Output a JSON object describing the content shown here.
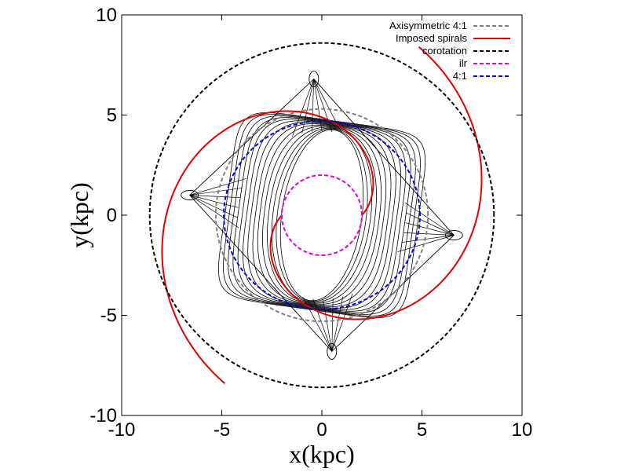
{
  "chart_data": {
    "type": "line",
    "title": "",
    "xlabel": "x(kpc)",
    "ylabel": "y(kpc)",
    "xlim": [
      -10,
      10
    ],
    "ylim": [
      -10,
      10
    ],
    "xticks": [
      -10,
      -5,
      0,
      5,
      10
    ],
    "yticks": [
      -10,
      -5,
      0,
      5,
      10
    ],
    "xtick_labels": [
      "-10",
      "-5",
      "0",
      "5",
      "10"
    ],
    "ytick_labels": [
      "-10",
      "-5",
      "0",
      "5",
      "10"
    ],
    "grid": false,
    "legend_position": "top-right",
    "series": [
      {
        "name": "Axisymmetric 4:1",
        "kind": "circle",
        "radius": 5.3,
        "center": [
          0,
          0
        ],
        "color": "#808080",
        "dash": "dashed"
      },
      {
        "name": "Imposed spirals",
        "kind": "two-arm spiral",
        "r_inner": 2.0,
        "r_outer": 9.7,
        "winding_deg": 240,
        "color": "#e00000",
        "dash": "solid"
      },
      {
        "name": "corotation",
        "kind": "circle",
        "radius": 8.6,
        "center": [
          0,
          0
        ],
        "color": "#000000",
        "dash": "dashed"
      },
      {
        "name": "ilr",
        "kind": "circle",
        "radius": 2.0,
        "center": [
          0,
          0
        ],
        "color": "#e000e0",
        "dash": "dashed"
      },
      {
        "name": "4:1",
        "kind": "oval",
        "semi_axis_x": 4.9,
        "semi_axis_y": 4.7,
        "center": [
          0,
          0
        ],
        "color": "#0000e0",
        "dash": "dashed"
      }
    ],
    "orbit_family": {
      "color": "#000000",
      "n_orbits": 14,
      "semi_axis_x_range": [
        2.0,
        4.8
      ],
      "semi_axis_y_range": [
        4.3,
        4.75
      ],
      "squareness_max": 0.85,
      "tilt_deg": -8,
      "tip_loops": [
        [
          -0.4,
          6.8
        ],
        [
          0.5,
          -6.8
        ],
        [
          -6.6,
          1.0
        ],
        [
          6.6,
          -1.0
        ]
      ]
    }
  }
}
